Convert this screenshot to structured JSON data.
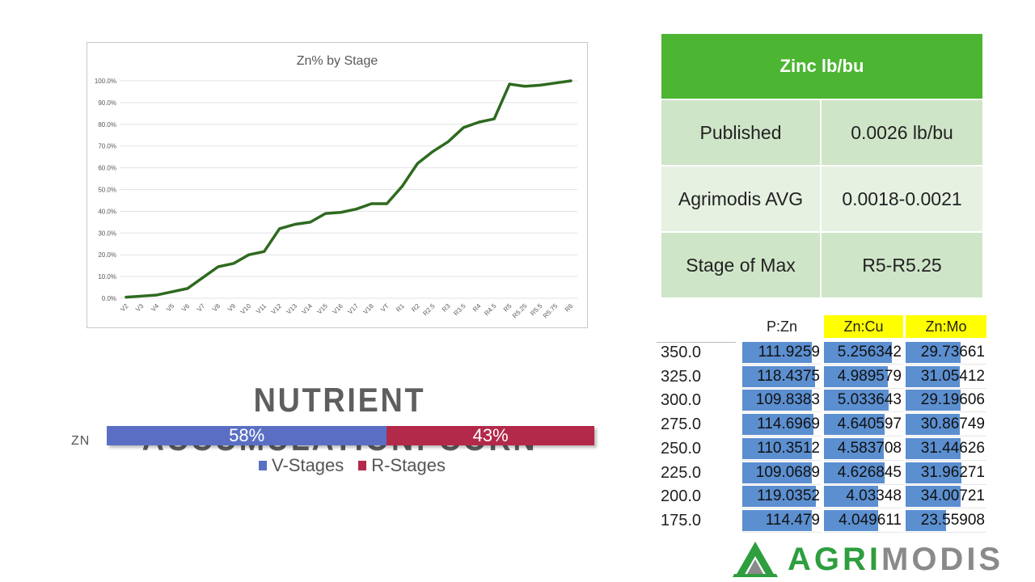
{
  "chart_data": {
    "type": "line",
    "title": "Zn% by Stage",
    "x": [
      "V2",
      "V3",
      "V4",
      "V5",
      "V6",
      "V7",
      "V8",
      "V9",
      "V10",
      "V11",
      "V12",
      "V13",
      "V14",
      "V15",
      "V16",
      "V17",
      "V18",
      "VT",
      "R1",
      "R2",
      "R2.5",
      "R3",
      "R3.5",
      "R4",
      "R4.5",
      "R5",
      "R5.25",
      "R5.5",
      "R5.75",
      "R6"
    ],
    "series": [
      {
        "values": [
          0.5,
          1.0,
          1.5,
          3.0,
          4.5,
          9.5,
          14.5,
          16.0,
          20.0,
          21.5,
          32.0,
          34.0,
          35.0,
          39.0,
          39.5,
          41.0,
          43.5,
          43.5,
          51.5,
          62.0,
          67.5,
          72.0,
          78.5,
          81.0,
          82.5,
          98.5,
          97.5,
          98.0,
          99.0,
          100.0
        ],
        "color": "#2e6a1f"
      }
    ],
    "yticks": [
      "0.0%",
      "10.0%",
      "20.0%",
      "30.0%",
      "40.0%",
      "50.0%",
      "60.0%",
      "70.0%",
      "80.0%",
      "90.0%",
      "100.0%"
    ],
    "ylim": [
      0,
      100
    ],
    "grid": true,
    "legend": "none"
  },
  "zinc_table": {
    "title": "Zinc lb/bu",
    "rows": [
      {
        "label": "Published",
        "value": "0.0026 lb/bu"
      },
      {
        "label": "Agrimodis AVG",
        "value": "0.0018-0.0021"
      },
      {
        "label": "Stage of Max",
        "value": "R5-R5.25"
      }
    ],
    "header_color": "#4cb532"
  },
  "accumulation": {
    "title": "NUTRIENT ACCUMULATION: CORN",
    "nutrient": "ZN",
    "v_percent": 58,
    "r_percent": 43,
    "v_label": "58%",
    "r_label": "43%",
    "legend_v": "V-Stages",
    "legend_r": "R-Stages",
    "v_color": "#5a6fc4",
    "r_color": "#b3294a"
  },
  "ratio_table": {
    "columns": [
      "P:Zn",
      "Zn:Cu",
      "Zn:Mo"
    ],
    "highlight_color": "#ffff00",
    "bar_color": "#5b8fd0",
    "row_labels": [
      "350.0",
      "325.0",
      "300.0",
      "275.0",
      "250.0",
      "225.0",
      "200.0",
      "175.0"
    ],
    "rows": [
      [
        "111.9259",
        "5.256342",
        "29.73661"
      ],
      [
        "118.4375",
        "4.989579",
        "31.05412"
      ],
      [
        "109.8383",
        "5.033643",
        "29.19606"
      ],
      [
        "114.6969",
        "4.640597",
        "30.86749"
      ],
      [
        "110.3512",
        "4.583708",
        "31.44626"
      ],
      [
        "109.0689",
        "4.626845",
        "31.96271"
      ],
      [
        "119.0352",
        "4.03348",
        "34.00721"
      ],
      [
        "114.479",
        "4.049611",
        "23.55908"
      ]
    ],
    "bar_fractions": [
      [
        0.88,
        0.86,
        0.68
      ],
      [
        0.92,
        0.81,
        0.67
      ],
      [
        0.88,
        0.82,
        0.68
      ],
      [
        0.9,
        0.77,
        0.67
      ],
      [
        0.88,
        0.76,
        0.68
      ],
      [
        0.88,
        0.77,
        0.69
      ],
      [
        0.93,
        0.68,
        0.68
      ],
      [
        0.88,
        0.68,
        0.5
      ]
    ]
  },
  "logo": {
    "part1": "AGRI",
    "part2": "MODIS",
    "color1": "#2e9e3e",
    "color2": "#8a8a8a",
    "icon": "mountain-logo-icon"
  }
}
